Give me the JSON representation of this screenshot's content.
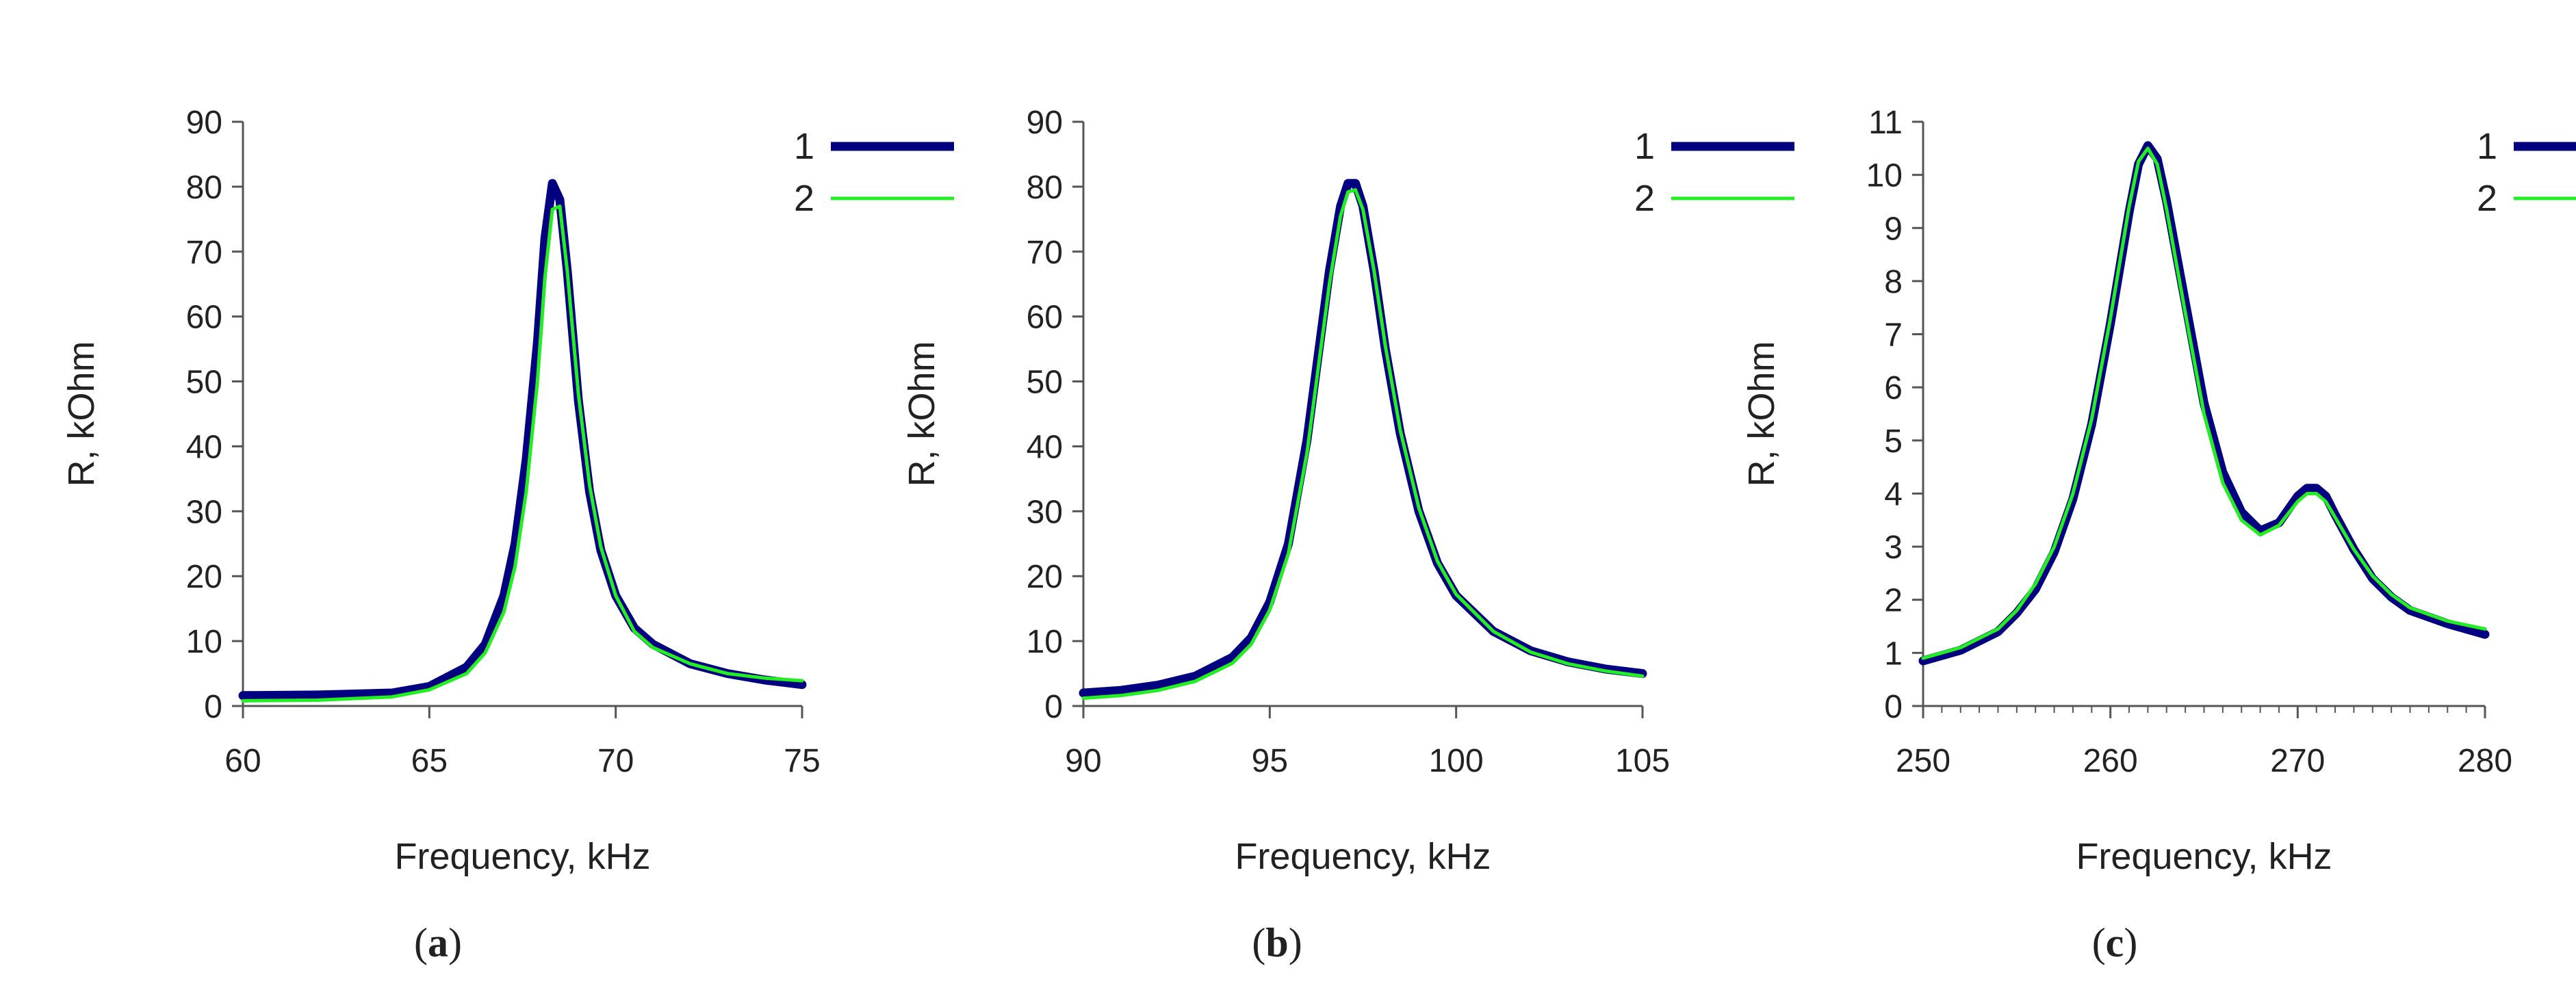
{
  "colors": {
    "series1": "#000080",
    "series2": "#22ee22",
    "axis": "#555555",
    "text": "#222222"
  },
  "chart_data": [
    {
      "id": "a",
      "type": "line",
      "caption": "a",
      "xlabel": "Frequency, kHz",
      "ylabel": "R, kOhm",
      "xlim": [
        60,
        75
      ],
      "ylim": [
        0,
        90
      ],
      "xticks": [
        60,
        65,
        70,
        75
      ],
      "yticks": [
        0,
        10,
        20,
        30,
        40,
        50,
        60,
        70,
        80,
        90
      ],
      "xminor": [],
      "grid": false,
      "legend": "top-right",
      "series": [
        {
          "name": "1",
          "x": [
            60,
            62,
            64,
            65,
            66,
            66.5,
            67,
            67.3,
            67.6,
            67.9,
            68.1,
            68.3,
            68.5,
            68.7,
            69,
            69.3,
            69.6,
            70,
            70.5,
            71,
            72,
            73,
            74,
            75
          ],
          "y": [
            1.6,
            1.7,
            2.0,
            3.0,
            6.0,
            9.5,
            17,
            25,
            38,
            56,
            72,
            80.5,
            78,
            67,
            47,
            33,
            24,
            17,
            12,
            9.5,
            6.5,
            5.0,
            4.0,
            3.3
          ]
        },
        {
          "name": "2",
          "x": [
            60,
            62,
            64,
            65,
            66,
            66.5,
            67,
            67.3,
            67.6,
            67.9,
            68.1,
            68.3,
            68.5,
            68.7,
            69,
            69.3,
            69.6,
            70,
            70.5,
            71,
            72,
            73,
            74,
            75
          ],
          "y": [
            0.8,
            0.9,
            1.4,
            2.5,
            5.0,
            8.2,
            14.5,
            21.5,
            33,
            50,
            66,
            76.5,
            77,
            67,
            48,
            34,
            24.5,
            17,
            11.5,
            9.0,
            6.5,
            5.0,
            4.3,
            3.9
          ]
        }
      ]
    },
    {
      "id": "b",
      "type": "line",
      "caption": "b",
      "xlabel": "Frequency, kHz",
      "ylabel": "R, kOhm",
      "xlim": [
        90,
        105
      ],
      "ylim": [
        0,
        90
      ],
      "xticks": [
        90,
        95,
        100,
        105
      ],
      "yticks": [
        0,
        10,
        20,
        30,
        40,
        50,
        60,
        70,
        80,
        90
      ],
      "xminor": [],
      "grid": false,
      "legend": "top-right",
      "series": [
        {
          "name": "1",
          "x": [
            90,
            91,
            92,
            93,
            94,
            94.5,
            95,
            95.5,
            96,
            96.3,
            96.6,
            96.9,
            97.1,
            97.3,
            97.5,
            97.8,
            98.1,
            98.5,
            99,
            99.5,
            100,
            101,
            102,
            103,
            104,
            105
          ],
          "y": [
            2.0,
            2.4,
            3.2,
            4.6,
            7.5,
            10.5,
            16,
            25,
            41,
            54,
            67,
            77,
            80.5,
            80.5,
            77,
            67,
            55,
            42,
            30,
            22,
            17,
            11.5,
            8.5,
            6.8,
            5.7,
            5.0
          ]
        },
        {
          "name": "2",
          "x": [
            90,
            91,
            92,
            93,
            94,
            94.5,
            95,
            95.5,
            96,
            96.3,
            96.6,
            96.9,
            97.1,
            97.3,
            97.5,
            97.8,
            98.1,
            98.5,
            99,
            99.5,
            100,
            101,
            102,
            103,
            104,
            105
          ],
          "y": [
            1.2,
            1.6,
            2.4,
            3.8,
            6.6,
            9.5,
            14.8,
            23.5,
            39,
            52,
            65,
            75.5,
            79.2,
            79.5,
            76.5,
            67,
            55.5,
            42.5,
            30.5,
            22.3,
            17.2,
            11.5,
            8.3,
            6.5,
            5.4,
            4.6
          ]
        }
      ]
    },
    {
      "id": "c",
      "type": "line",
      "caption": "c",
      "xlabel": "Frequency, kHz",
      "ylabel": "R, kOhm",
      "xlim": [
        250,
        280
      ],
      "ylim": [
        0,
        11
      ],
      "xticks": [
        250,
        260,
        270,
        280
      ],
      "yticks": [
        0,
        1,
        2,
        3,
        4,
        5,
        6,
        7,
        8,
        9,
        10,
        11
      ],
      "xminor": [
        251,
        252,
        253,
        254,
        255,
        256,
        257,
        258,
        259,
        261,
        262,
        263,
        264,
        265,
        266,
        267,
        268,
        269,
        271,
        272,
        273,
        274,
        275,
        276,
        277,
        278,
        279
      ],
      "grid": false,
      "legend": "top-right",
      "series": [
        {
          "name": "1",
          "x": [
            250,
            252,
            254,
            255,
            256,
            257,
            258,
            259,
            260,
            261,
            261.5,
            262,
            262.5,
            263,
            264,
            265,
            266,
            267,
            268,
            269,
            270,
            270.5,
            271,
            271.5,
            272,
            273,
            274,
            275,
            276,
            278,
            280
          ],
          "y": [
            0.85,
            1.05,
            1.4,
            1.75,
            2.2,
            2.9,
            3.9,
            5.3,
            7.2,
            9.3,
            10.2,
            10.55,
            10.3,
            9.5,
            7.6,
            5.7,
            4.4,
            3.65,
            3.3,
            3.45,
            3.95,
            4.1,
            4.1,
            3.95,
            3.6,
            2.95,
            2.4,
            2.05,
            1.8,
            1.55,
            1.35
          ]
        },
        {
          "name": "2",
          "x": [
            250,
            252,
            254,
            255,
            256,
            257,
            258,
            259,
            260,
            261,
            261.5,
            262,
            262.5,
            263,
            264,
            265,
            266,
            267,
            268,
            269,
            270,
            270.5,
            271,
            271.5,
            272,
            273,
            274,
            275,
            276,
            278,
            280
          ],
          "y": [
            0.9,
            1.1,
            1.45,
            1.8,
            2.3,
            3.0,
            4.0,
            5.4,
            7.3,
            9.4,
            10.25,
            10.5,
            10.2,
            9.35,
            7.4,
            5.5,
            4.2,
            3.5,
            3.22,
            3.4,
            3.85,
            4.0,
            4.0,
            3.85,
            3.55,
            2.95,
            2.45,
            2.1,
            1.85,
            1.6,
            1.45
          ]
        }
      ]
    }
  ]
}
